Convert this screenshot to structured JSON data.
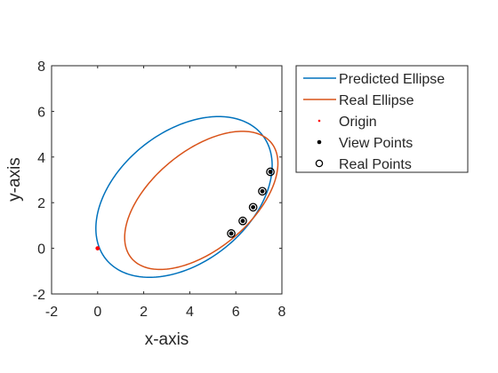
{
  "chart_data": {
    "type": "line",
    "title": "",
    "xlabel": "x-axis",
    "ylabel": "y-axis",
    "xlim": [
      -2,
      8
    ],
    "ylim": [
      -2,
      8
    ],
    "xticks": [
      "-2",
      "0",
      "2",
      "4",
      "6",
      "8"
    ],
    "yticks": [
      "-2",
      "0",
      "2",
      "4",
      "6",
      "8"
    ],
    "grid": false,
    "legend_position": "outside-right",
    "series": [
      {
        "name": "Predicted Ellipse",
        "kind": "ellipse",
        "color": "#0072BD",
        "center": [
          3.75,
          2.25
        ],
        "semi_axes": [
          4.35,
          2.85
        ],
        "rotation_deg": 39
      },
      {
        "name": "Real Ellipse",
        "kind": "ellipse",
        "color": "#D95319",
        "center": [
          4.5,
          2.1
        ],
        "semi_axes": [
          3.95,
          2.15
        ],
        "rotation_deg": 40
      },
      {
        "name": "Origin",
        "kind": "points",
        "marker": "dot",
        "color": "#FF0000",
        "points": [
          [
            0,
            0
          ]
        ]
      },
      {
        "name": "View Points",
        "kind": "points",
        "marker": "dot",
        "color": "#000000",
        "points": [
          [
            5.8,
            0.65
          ],
          [
            6.3,
            1.2
          ],
          [
            6.75,
            1.8
          ],
          [
            7.15,
            2.5
          ],
          [
            7.5,
            3.35
          ]
        ]
      },
      {
        "name": "Real Points",
        "kind": "points",
        "marker": "circle",
        "color": "#000000",
        "points": [
          [
            5.8,
            0.65
          ],
          [
            6.3,
            1.2
          ],
          [
            6.75,
            1.8
          ],
          [
            7.15,
            2.5
          ],
          [
            7.5,
            3.35
          ]
        ]
      }
    ]
  }
}
